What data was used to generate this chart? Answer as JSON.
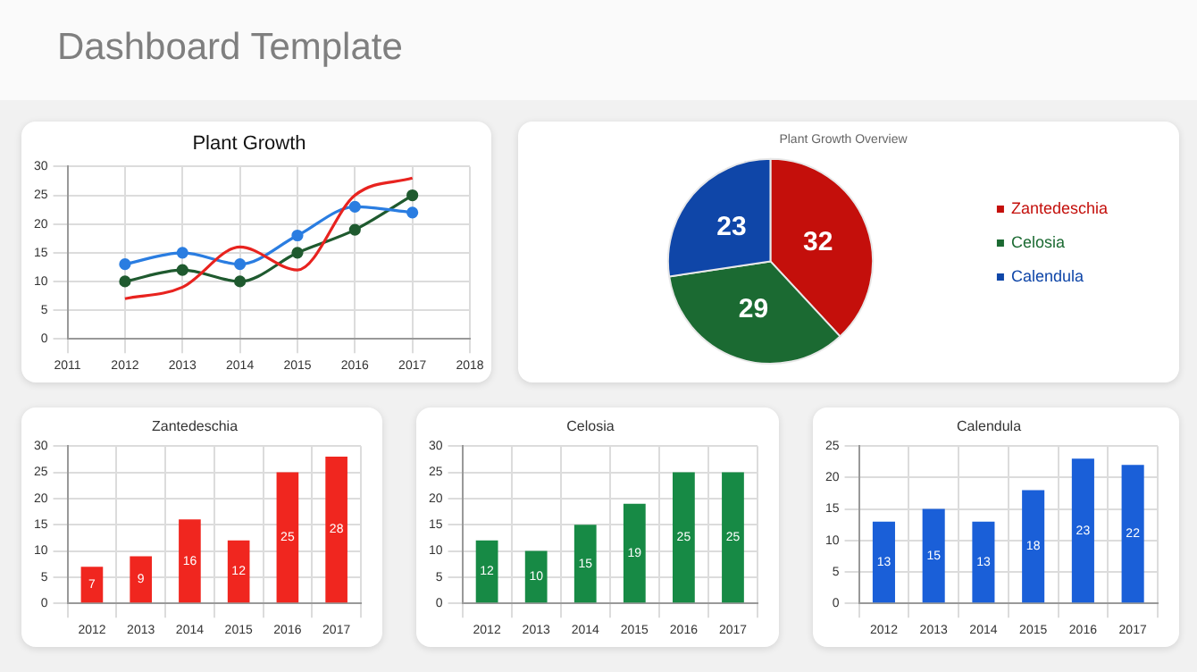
{
  "chart_data": [
    {
      "type": "other",
      "title": "Dashboard Template"
    },
    {
      "type": "line",
      "title": "Plant Growth",
      "x": [
        2012,
        2013,
        2014,
        2015,
        2016,
        2017
      ],
      "xlim": [
        2011,
        2018
      ],
      "xticks": [
        2011,
        2012,
        2013,
        2014,
        2015,
        2016,
        2017,
        2018
      ],
      "ylim": [
        0,
        30
      ],
      "yticks": [
        0,
        5,
        10,
        15,
        20,
        25,
        30
      ],
      "grid": true,
      "legend": false,
      "series": [
        {
          "color": "#e8231f",
          "values": [
            7,
            9,
            16,
            12,
            25,
            28
          ],
          "marker": "none"
        },
        {
          "color": "#2a7de1",
          "values": [
            13,
            15,
            13,
            18,
            23,
            22
          ],
          "marker": "circle"
        },
        {
          "color": "#1f5a2f",
          "values": [
            10,
            12,
            10,
            15,
            19,
            25
          ],
          "marker": "circle"
        }
      ]
    },
    {
      "type": "pie",
      "title": "Plant Growth Overview",
      "categories": [
        "Zantedeschia",
        "Celosia",
        "Calendula"
      ],
      "values": [
        32,
        29,
        23
      ],
      "colors": [
        "#c40f0b",
        "#1b6a32",
        "#0f46a8"
      ],
      "data_labels": true,
      "legend": "right"
    },
    {
      "type": "bar",
      "title": "Zantedeschia",
      "categories": [
        "2012",
        "2013",
        "2014",
        "2015",
        "2016",
        "2017"
      ],
      "values": [
        7,
        9,
        16,
        12,
        25,
        28
      ],
      "color": "#f0261f",
      "ylim": [
        0,
        30
      ],
      "yticks": [
        0,
        5,
        10,
        15,
        20,
        25,
        30
      ],
      "grid": true,
      "data_labels": true,
      "legend": false
    },
    {
      "type": "bar",
      "title": "Celosia",
      "categories": [
        "2012",
        "2013",
        "2014",
        "2015",
        "2016",
        "2017"
      ],
      "values": [
        12,
        10,
        15,
        19,
        25,
        25
      ],
      "color": "#178a45",
      "ylim": [
        0,
        30
      ],
      "yticks": [
        0,
        5,
        10,
        15,
        20,
        25,
        30
      ],
      "grid": true,
      "data_labels": true,
      "legend": false
    },
    {
      "type": "bar",
      "title": "Calendula",
      "categories": [
        "2012",
        "2013",
        "2014",
        "2015",
        "2016",
        "2017"
      ],
      "values": [
        13,
        15,
        13,
        18,
        23,
        22
      ],
      "color": "#1a5fd8",
      "ylim": [
        0,
        25
      ],
      "yticks": [
        0,
        5,
        10,
        15,
        20,
        25
      ],
      "grid": true,
      "data_labels": true,
      "legend": false
    }
  ]
}
